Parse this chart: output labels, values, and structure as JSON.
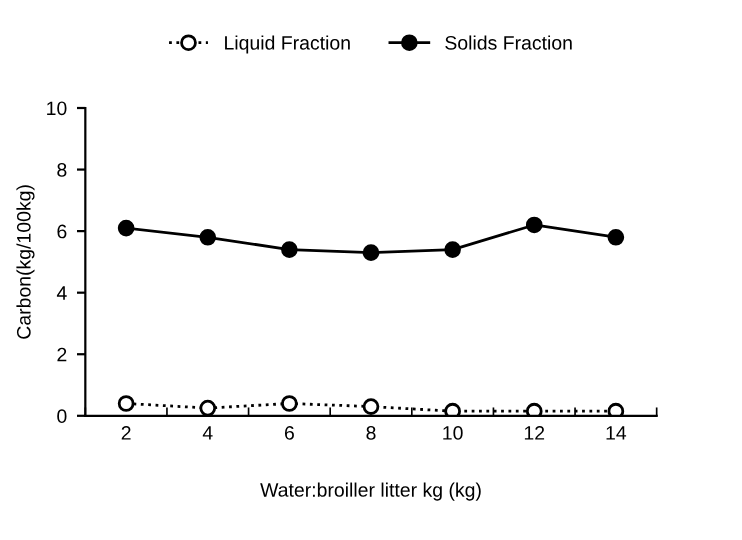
{
  "chart_data": {
    "type": "line",
    "xlabel": "Water:broiller litter kg (kg)",
    "ylabel": "Carbon(kg/100kg)",
    "categories": [
      "2",
      "4",
      "6",
      "8",
      "10",
      "12",
      "14"
    ],
    "series": [
      {
        "name": "Liquid Fraction",
        "color": "#000000",
        "values": [
          0.4,
          0.25,
          0.4,
          0.3,
          0.15,
          0.15,
          0.15
        ],
        "marker": "circle",
        "line_style": "dotted"
      },
      {
        "name": "Solids Fraction",
        "color": "#000000",
        "values": [
          6.1,
          5.8,
          5.4,
          5.3,
          5.4,
          6.2,
          5.8
        ],
        "marker": "circle",
        "line_style": "solid"
      }
    ],
    "ylim": [
      0,
      10
    ],
    "yticks": [
      0,
      2,
      4,
      6,
      8,
      10
    ],
    "grid": false,
    "legend": "top"
  }
}
